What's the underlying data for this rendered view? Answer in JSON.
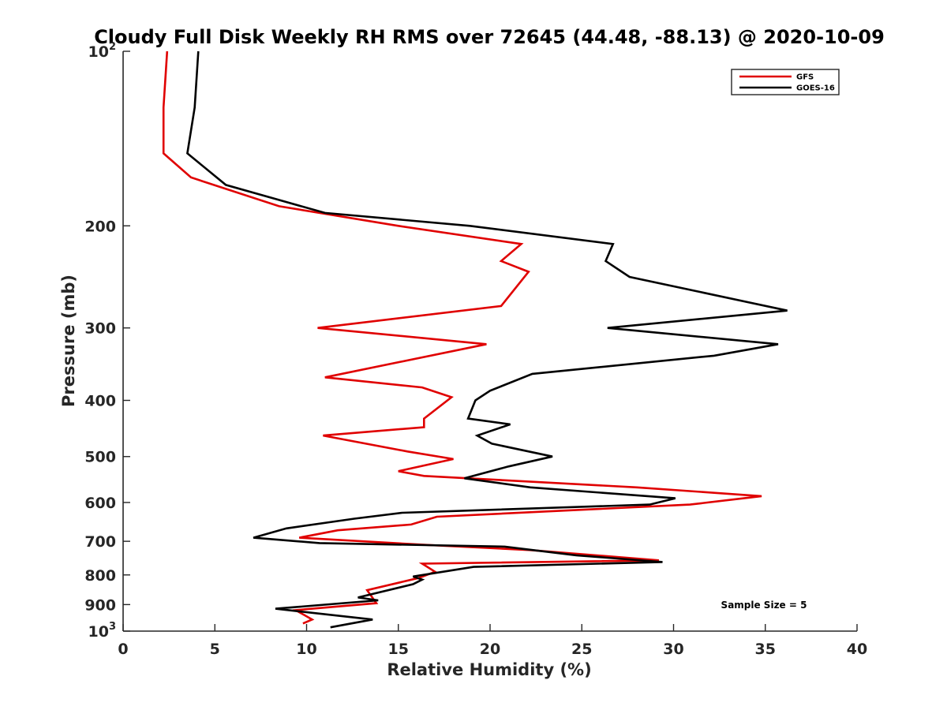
{
  "chart_data": {
    "type": "line",
    "title": "Cloudy Full Disk Weekly RH RMS over 72645 (44.48, -88.13) @ 2020-10-09",
    "xlabel": "Relative Humidity (%)",
    "ylabel": "Pressure (mb)",
    "xlim": [
      0,
      40
    ],
    "ylim": [
      100,
      1000
    ],
    "y_scale": "log",
    "y_reversed": true,
    "x_ticks": [
      0,
      5,
      10,
      15,
      20,
      25,
      30,
      35,
      40
    ],
    "y_ticks": [
      {
        "value": 100,
        "base": "10",
        "exp": "2"
      },
      {
        "value": 200,
        "label": "200"
      },
      {
        "value": 300,
        "label": "300"
      },
      {
        "value": 400,
        "label": "400"
      },
      {
        "value": 500,
        "label": "500"
      },
      {
        "value": 600,
        "label": "600"
      },
      {
        "value": 700,
        "label": "700"
      },
      {
        "value": 800,
        "label": "800"
      },
      {
        "value": 900,
        "label": "900"
      },
      {
        "value": 1000,
        "base": "10",
        "exp": "3"
      }
    ],
    "grid": false,
    "legend_position": "top-right",
    "series": [
      {
        "name": "GFS",
        "color": "#e00000",
        "points": [
          [
            2.4,
            100
          ],
          [
            2.2,
            125
          ],
          [
            2.2,
            150
          ],
          [
            3.7,
            165
          ],
          [
            8.5,
            185
          ],
          [
            15,
            200
          ],
          [
            21.7,
            215
          ],
          [
            20.6,
            230
          ],
          [
            22.1,
            240
          ],
          [
            20.6,
            275
          ],
          [
            10.6,
            300
          ],
          [
            19.8,
            320
          ],
          [
            11.0,
            365
          ],
          [
            16.3,
            380
          ],
          [
            17.9,
            395
          ],
          [
            16.4,
            430
          ],
          [
            16.4,
            445
          ],
          [
            10.9,
            460
          ],
          [
            15.5,
            490
          ],
          [
            18.0,
            505
          ],
          [
            15.0,
            530
          ],
          [
            16.4,
            540
          ],
          [
            28,
            565
          ],
          [
            34.8,
            585
          ],
          [
            30.9,
            605
          ],
          [
            17.1,
            635
          ],
          [
            15.7,
            655
          ],
          [
            11.7,
            670
          ],
          [
            9.6,
            690
          ],
          [
            16.5,
            710
          ],
          [
            22.2,
            725
          ],
          [
            29.2,
            755
          ],
          [
            16.3,
            765
          ],
          [
            17.0,
            790
          ],
          [
            16.1,
            810
          ],
          [
            13.3,
            850
          ],
          [
            13.8,
            895
          ],
          [
            9.4,
            920
          ],
          [
            10.3,
            955
          ],
          [
            9.8,
            970
          ]
        ]
      },
      {
        "name": "GOES-16",
        "color": "#000000",
        "points": [
          [
            4.1,
            100
          ],
          [
            3.9,
            125
          ],
          [
            3.5,
            150
          ],
          [
            5.6,
            170
          ],
          [
            11.0,
            190
          ],
          [
            18.9,
            200
          ],
          [
            26.7,
            215
          ],
          [
            26.3,
            230
          ],
          [
            27.6,
            245
          ],
          [
            36.2,
            280
          ],
          [
            26.4,
            300
          ],
          [
            35.7,
            320
          ],
          [
            32.2,
            335
          ],
          [
            22.3,
            360
          ],
          [
            20.0,
            385
          ],
          [
            19.2,
            400
          ],
          [
            18.8,
            430
          ],
          [
            21.1,
            440
          ],
          [
            19.3,
            460
          ],
          [
            20.1,
            475
          ],
          [
            23.4,
            500
          ],
          [
            21.0,
            520
          ],
          [
            18.6,
            545
          ],
          [
            22.2,
            565
          ],
          [
            30.1,
            590
          ],
          [
            28.7,
            605
          ],
          [
            15.2,
            625
          ],
          [
            12.6,
            640
          ],
          [
            8.9,
            665
          ],
          [
            7.1,
            690
          ],
          [
            10.7,
            705
          ],
          [
            20.8,
            715
          ],
          [
            24.7,
            740
          ],
          [
            29.4,
            760
          ],
          [
            19.1,
            775
          ],
          [
            15.8,
            805
          ],
          [
            16.3,
            815
          ],
          [
            15.8,
            830
          ],
          [
            12.8,
            875
          ],
          [
            13.9,
            885
          ],
          [
            8.3,
            915
          ],
          [
            13.6,
            955
          ],
          [
            11.3,
            985
          ]
        ]
      }
    ],
    "annotation": "Sample Size = 5"
  }
}
